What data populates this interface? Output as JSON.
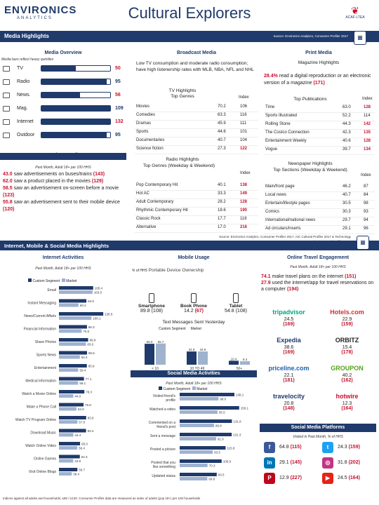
{
  "brand": {
    "name": "ENVIRONICS",
    "sub": "ANALYTICS",
    "title": "Cultural Explorers",
    "corner": "ACAF·LTEA"
  },
  "topbar": {
    "left": "Media Highlights",
    "source": "Source: Environics Analytics, Consumer Profiler 2017",
    "icon": "calendar-icon"
  },
  "media_overview": {
    "title": "Media Overview",
    "note": "Media bars reflect heavy quintiles",
    "items": [
      {
        "name": "TV",
        "index": "50",
        "fill": 0.5,
        "color": "#c8102e"
      },
      {
        "name": "Radio",
        "index": "95",
        "fill": 0.95,
        "color": "#1f3a6b"
      },
      {
        "name": "News.",
        "index": "56",
        "fill": 0.56,
        "color": "#c8102e"
      },
      {
        "name": "Mag.",
        "index": "109",
        "fill": 1.0,
        "color": "#1f3a6b"
      },
      {
        "name": "Internet",
        "index": "132",
        "fill": 1.0,
        "color": "#c8102e"
      },
      {
        "name": "Outdoor",
        "index": "95",
        "fill": 0.95,
        "color": "#1f3a6b"
      }
    ]
  },
  "outdoor": {
    "title": "Outdoor Media",
    "sub": "Past Month, Adult 18+ per 100 HHS",
    "lines": [
      {
        "pct": "43.0",
        "text": " saw advertisements on buses/trains ",
        "idx": "(143)"
      },
      {
        "pct": "62.0",
        "text": " saw a product placed in the movies ",
        "idx": "(129)"
      },
      {
        "pct": "58.5",
        "text": " saw an advertisement on-screen before a movie ",
        "idx": "(123)"
      },
      {
        "pct": "55.8",
        "text": " saw an advertisement sent to their mobile device ",
        "idx": "(120)"
      }
    ]
  },
  "broadcast": {
    "title": "Broadcast Media",
    "desc": "Low TV consumption and moderate radio consumption; have high listenership rates with MLB, NBA, NFL and NHL",
    "tv_title": "TV Highlights",
    "tv_sub": "Top Genres",
    "tv_index_hdr": "Index",
    "tv": [
      [
        "Movies",
        "70.2",
        "106"
      ],
      [
        "Comedies",
        "63.3",
        "116"
      ],
      [
        "Dramas",
        "45.9",
        "111"
      ],
      [
        "Sports",
        "44.6",
        "101"
      ],
      [
        "Documentaries",
        "40.7",
        "104"
      ],
      [
        "Science fiction",
        "27.3",
        "122"
      ]
    ],
    "radio_title": "Radio Highlights",
    "radio_sub": "Top Genres (Weekday & Weekend)",
    "radio_index_hdr": "Index",
    "radio": [
      [
        "Pop Contemporary Hit",
        "40.1",
        "138"
      ],
      [
        "Hot AC",
        "33.3",
        "149"
      ],
      [
        "Adult Contemporary",
        "28.2",
        "128"
      ],
      [
        "Rhythmic Contemporary Hit",
        "18.6",
        "190"
      ],
      [
        "Classic Rock",
        "17.7",
        "118"
      ],
      [
        "Alternative",
        "17.0",
        "216"
      ]
    ]
  },
  "print": {
    "title": "Print Media",
    "sub": "Magazine Highlights",
    "lead": {
      "pct": "28.4%",
      "text": " read a digital reproduction or an electronic version of a magazine ",
      "idx": "(171)"
    },
    "pub_title": "Top Publications",
    "pub_index_hdr": "Index",
    "pubs": [
      [
        "Time",
        "63.0",
        "128"
      ],
      [
        "Sports Illustrated",
        "52.2",
        "114"
      ],
      [
        "Rolling Stone",
        "44.3",
        "142"
      ],
      [
        "The Costco Connection",
        "42.3",
        "135"
      ],
      [
        "Entertainment Weekly",
        "40.6",
        "128"
      ],
      [
        "Vogue",
        "39.7",
        "134"
      ]
    ],
    "news_title": "Newspaper Highlights",
    "news_sub": "Top Sections (Weekday & Weekend)",
    "news_index_hdr": "Index",
    "news": [
      [
        "Main/front page",
        "46.2",
        "87"
      ],
      [
        "Local news",
        "40.7",
        "84"
      ],
      [
        "Entertain/lifestyle pages",
        "30.5",
        "98"
      ],
      [
        "Comics",
        "30.3",
        "93"
      ],
      [
        "International/national news",
        "29.7",
        "94"
      ],
      [
        "Ad circulars/inserts",
        "29.1",
        "96"
      ]
    ]
  },
  "src2": "Source: Environics Analytics, Consumer Profiler 2017, AIC Cultural Profiler 2017 & Technology Inclusion Trend Profiler 2017",
  "band2": "Internet, Mobile & Social Media Highlights",
  "internet": {
    "title": "Internet Activities",
    "sub": "Past Month, Adult 18+ per 100 HHS",
    "legend": [
      "Custom Segment",
      "Market"
    ],
    "rows": [
      [
        "Email",
        "105.4",
        "103.5"
      ],
      [
        "Instant Messaging",
        "84.5",
        "60.2"
      ],
      [
        "News/Current Affairs",
        "136.5",
        "100.1"
      ],
      [
        "Financial Information",
        "86.3",
        "70.0"
      ],
      [
        "Share Photos",
        "89.9",
        "83.0"
      ],
      [
        "Sports News",
        "86.5",
        "64.4"
      ],
      [
        "Entertainment",
        "85.9",
        "59.4"
      ],
      [
        "Medical Information",
        "77.1",
        "59.1"
      ],
      [
        "Watch a Movie Online",
        "78.3",
        "44.0"
      ],
      [
        "Make a Phone Call",
        "75.8",
        "53.9"
      ],
      [
        "Watch TV Program Online",
        "83.8",
        "57.0"
      ],
      [
        "Download Music",
        "83.4",
        "44.4"
      ],
      [
        "Watch Online Video",
        "65.0",
        "56.4"
      ],
      [
        "Online Games",
        "64.3",
        "43.8"
      ],
      [
        "Visit Online Blogs",
        "56.7",
        "39.4"
      ]
    ]
  },
  "mobile": {
    "title": "Mobile Usage",
    "sub": "% of HHS",
    "sub2": "Portable Device Ownership",
    "devices": [
      {
        "name": "Smartphone",
        "val": "89.8 (108)"
      },
      {
        "name": "Book Phone",
        "val": "14.2 ",
        "idx": "(67)"
      },
      {
        "name": "Tablet",
        "val": "54.8 (108)"
      }
    ],
    "texts_title": "Text Messages Sent Yesterday",
    "legend": [
      "Custom Segment",
      "Market"
    ],
    "texts": [
      {
        "cat": "< 10",
        "seg": "55.0",
        "mkt": "55.7"
      },
      {
        "cat": "10 TO 49",
        "seg": "34.8",
        "mkt": "34.9"
      },
      {
        "cat": "50+",
        "seg": "10.4",
        "mkt": "9.3"
      }
    ]
  },
  "social": {
    "title": "Social Media Activities",
    "sub": "Past Month, Adult 18+ per 100 HHS",
    "legend": [
      "Custom Segment",
      "Market"
    ],
    "rows": [
      [
        "Visited friend's profile",
        "138.1",
        "98.0"
      ],
      [
        "Watched a video",
        "150.1",
        "95.5"
      ],
      [
        "Commented on a friend's post",
        "131.8",
        "86.8"
      ],
      [
        "Sent a message",
        "131.3",
        "91.9"
      ],
      [
        "Posted a picture",
        "115.8",
        "83.5"
      ],
      [
        "Posted that you like something",
        "105.9",
        "70.3"
      ],
      [
        "Updated status",
        "93.5",
        "69.8"
      ]
    ]
  },
  "travel": {
    "title": "Online Travel Engagement",
    "sub": "Past Month, Adult 18+ per 100 HHS",
    "lines": [
      {
        "pct": "74.1",
        "text": " make travel plans on the internet ",
        "idx": "(151)"
      },
      {
        "pct": "27.9",
        "text": " used the internet/app for travel reservations on a computer ",
        "idx": "(194)"
      }
    ],
    "brands": [
      {
        "name": "tripadvisor",
        "val": "24.5",
        "idx": "(169)",
        "color": "#00a680"
      },
      {
        "name": "Hotels.com",
        "val": "22.9",
        "idx": "(159)",
        "color": "#d32f2f"
      },
      {
        "name": "Expedia",
        "val": "38.6",
        "idx": "(169)",
        "color": "#1f3a6b"
      },
      {
        "name": "ORBITZ",
        "val": "15.4",
        "idx": "(178)",
        "color": "#222"
      },
      {
        "name": "priceline.com",
        "val": "22.1",
        "idx": "(181)",
        "color": "#1f5fb0"
      },
      {
        "name": "GROUPON",
        "val": "40.2",
        "idx": "(162)",
        "color": "#53a318"
      },
      {
        "name": "travelocity",
        "val": "20.8",
        "idx": "(148)",
        "color": "#1f3a6b"
      },
      {
        "name": "hotwire",
        "val": "12.3",
        "idx": "(164)",
        "color": "#c8102e"
      }
    ]
  },
  "platforms": {
    "title": "Social Media Platforms",
    "sub": "Visited in Past Month, % of HHS",
    "items": [
      {
        "icon": "facebook-icon",
        "glyph": "f",
        "val": "64.8 ",
        "idx": "(115)",
        "color": "#3b5998"
      },
      {
        "icon": "twitter-icon",
        "glyph": "t",
        "val": "24.3 ",
        "idx": "(159)",
        "color": "#1da1f2"
      },
      {
        "icon": "linkedin-icon",
        "glyph": "in",
        "val": "29.1 ",
        "idx": "(145)",
        "color": "#0077b5"
      },
      {
        "icon": "instagram-icon",
        "glyph": "◎",
        "val": "31.8 ",
        "idx": "(202)",
        "color": "#c13584"
      },
      {
        "icon": "pinterest-icon",
        "glyph": "P",
        "val": "12.9 ",
        "idx": "(227)",
        "color": "#bd081c"
      },
      {
        "icon": "youtube-icon",
        "glyph": "▶",
        "val": "24.5 ",
        "idx": "(164)",
        "color": "#e62117"
      }
    ]
  },
  "footer": "Indices against all adults and households; ≤80 / ≥120. Consumer Profiler data are measured as index of adults (pop 18+) per 100 households"
}
